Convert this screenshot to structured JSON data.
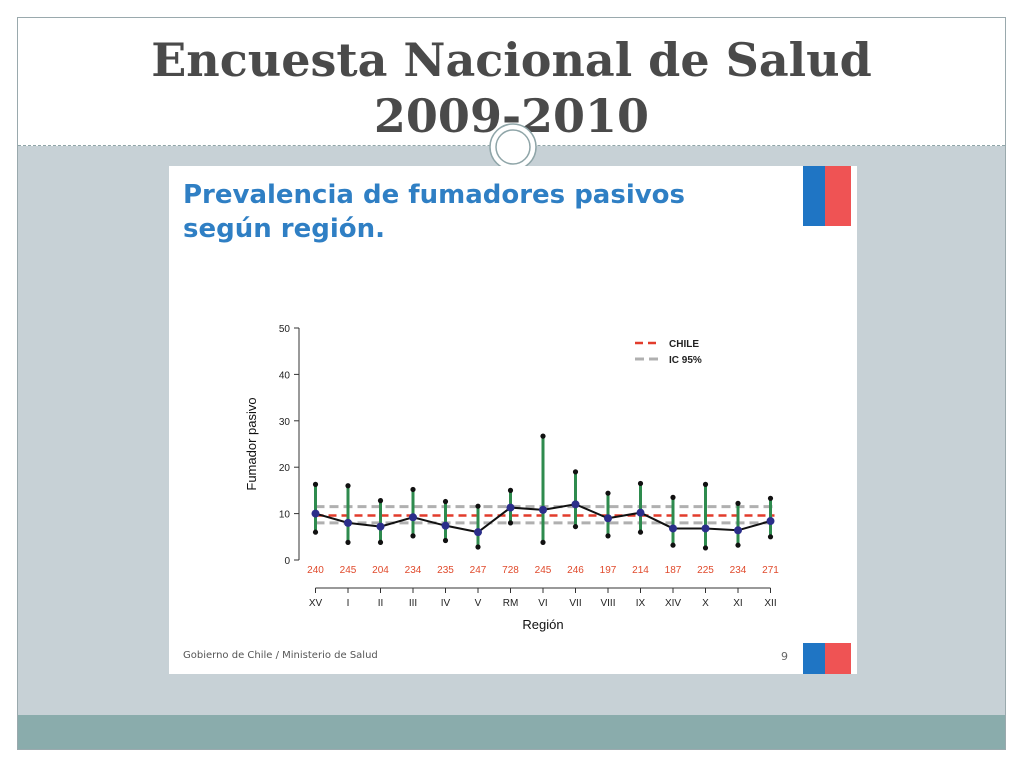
{
  "slide": {
    "title_line1": "Encuesta Nacional de Salud",
    "title_line2": "2009-2010"
  },
  "inner": {
    "title_line1": "Prevalencia  de fumadores pasivos",
    "title_line2": "según región.",
    "footer": "Gobierno de Chile / Ministerio de Salud",
    "page_number": "9"
  },
  "colors": {
    "estimate_line": "#111111",
    "point": "#2b2e8a",
    "ci_bar": "#2e8b4e",
    "chile_line": "#e23c2c",
    "ic_line": "#b0b0b0",
    "sample_size": "#e04a2c"
  },
  "chart_data": {
    "type": "line",
    "xlabel": "Región",
    "ylabel": "Fumador pasivo",
    "ylim": [
      0,
      50
    ],
    "yticks": [
      0,
      10,
      20,
      30,
      40,
      50
    ],
    "categories": [
      "XV",
      "I",
      "II",
      "III",
      "IV",
      "V",
      "RM",
      "VI",
      "VII",
      "VIII",
      "IX",
      "XIV",
      "X",
      "XI",
      "XII"
    ],
    "sample_sizes": [
      "240",
      "245",
      "204",
      "234",
      "235",
      "247",
      "728",
      "245",
      "246",
      "197",
      "214",
      "187",
      "225",
      "234",
      "271"
    ],
    "series": [
      {
        "values": [
          10.0,
          8.0,
          7.2,
          9.2,
          7.4,
          6.0,
          11.3,
          10.8,
          12.0,
          9.0,
          10.2,
          6.8,
          6.8,
          6.4,
          8.4
        ],
        "lower": [
          6.0,
          3.8,
          3.8,
          5.2,
          4.2,
          2.8,
          8.0,
          3.8,
          7.2,
          5.2,
          6.0,
          3.2,
          2.6,
          3.2,
          5.0
        ],
        "upper": [
          16.3,
          16.0,
          12.8,
          15.2,
          12.6,
          11.6,
          15.0,
          26.7,
          19.0,
          14.4,
          16.5,
          13.5,
          16.3,
          12.2,
          13.3
        ]
      }
    ],
    "reference_lines": [
      {
        "name": "CHILE",
        "value": 9.6,
        "style": "dashed"
      },
      {
        "name": "IC 95%",
        "values": [
          8.0,
          11.5
        ],
        "style": "dashed"
      }
    ],
    "legend": "top-right",
    "grid": false
  }
}
